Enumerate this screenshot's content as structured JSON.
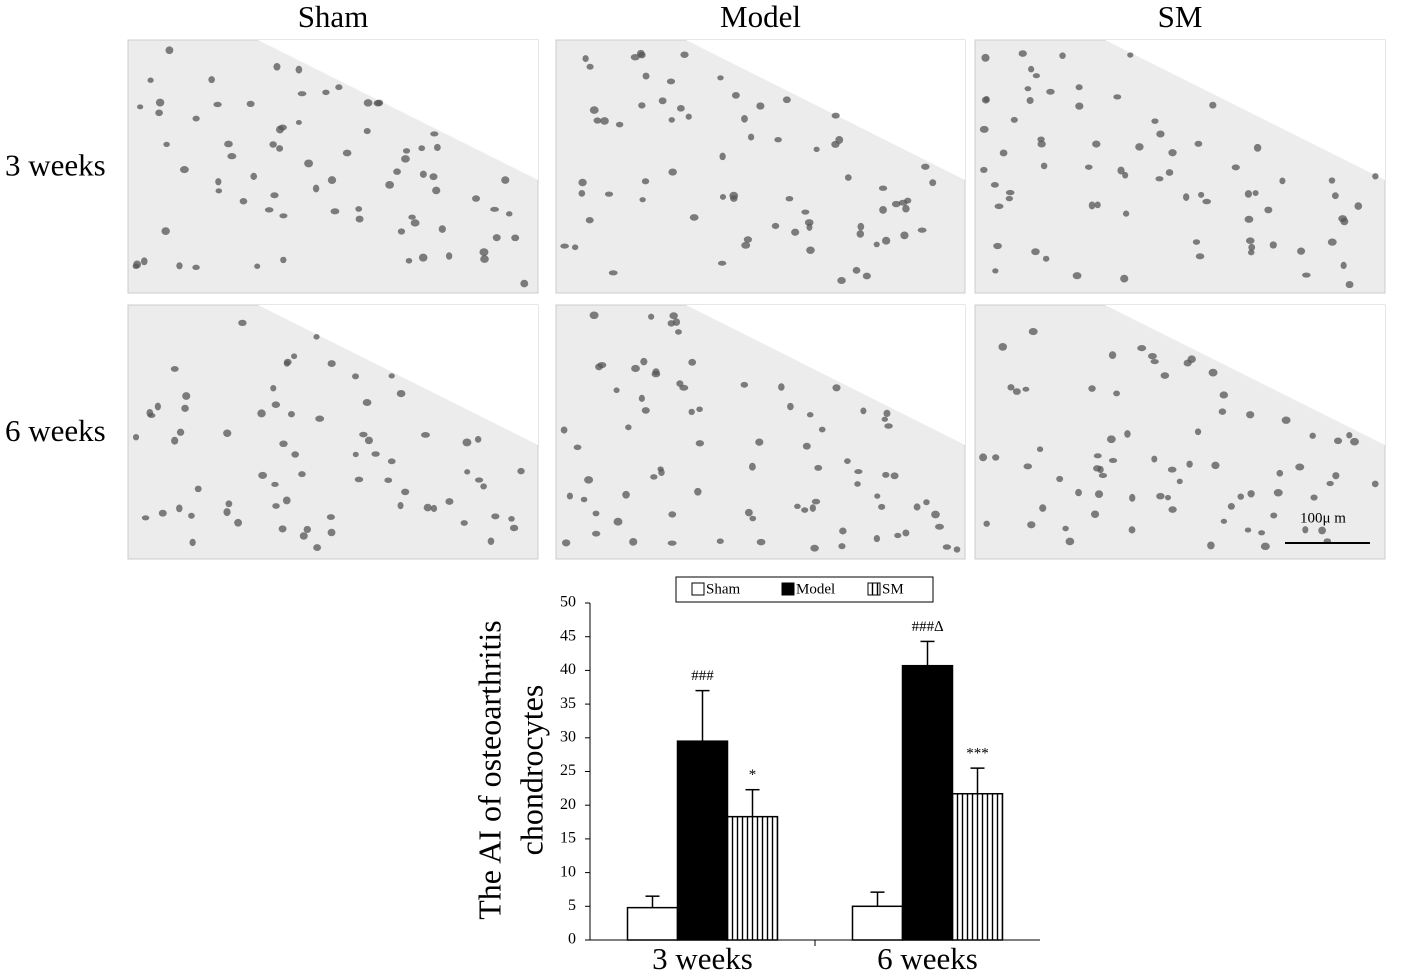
{
  "columns": [
    "Sham",
    "Model",
    "SM"
  ],
  "rows": [
    "3 weeks",
    "6 weeks"
  ],
  "scale_bar": "100μ m",
  "chart_data": {
    "type": "bar",
    "ylabel": [
      "The AI of osteoarthritis",
      "chondrocytes"
    ],
    "categories": [
      "3 weeks",
      "6 weeks"
    ],
    "series": [
      {
        "name": "Sham",
        "color": "#ffffff",
        "values": [
          4.8,
          5.0
        ],
        "errors": [
          1.7,
          2.1
        ],
        "annotations": [
          null,
          null
        ]
      },
      {
        "name": "Model",
        "color": "#000000",
        "values": [
          29.5,
          40.7
        ],
        "errors": [
          7.5,
          3.6
        ],
        "annotations": [
          "###",
          "###∆"
        ]
      },
      {
        "name": "SM",
        "color": "#ffffff",
        "pattern": "vertical-stripes",
        "values": [
          18.3,
          21.7
        ],
        "errors": [
          4.0,
          3.8
        ],
        "annotations": [
          "*",
          "***"
        ]
      }
    ],
    "ylim": [
      0,
      50
    ],
    "yticks": [
      0,
      5,
      10,
      15,
      20,
      25,
      30,
      35,
      40,
      45,
      50
    ]
  }
}
